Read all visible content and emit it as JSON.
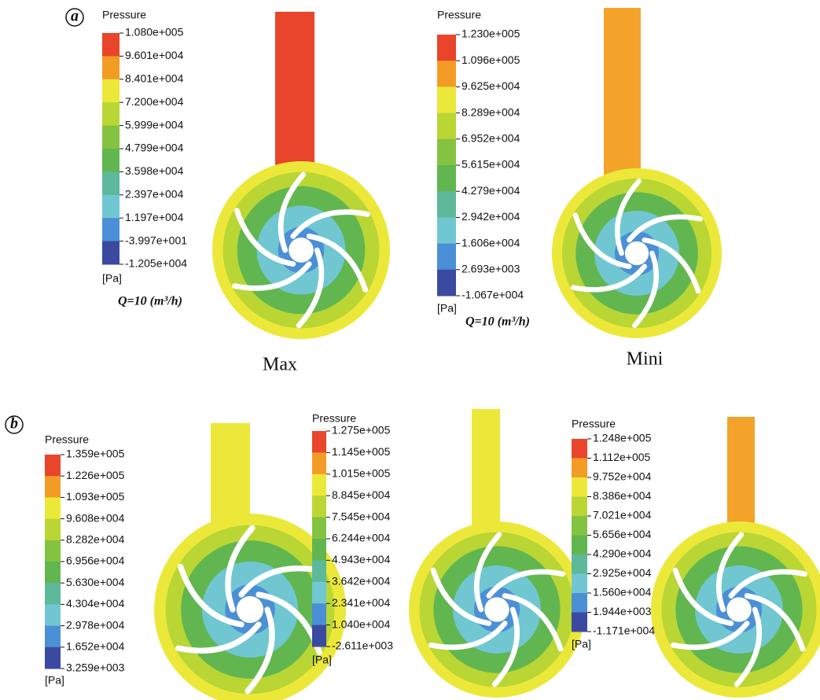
{
  "panels": [
    {
      "label": "a",
      "plots": [
        {
          "legend_title": "Pressure",
          "ticks": [
            "1.080e+005",
            "9.601e+004",
            "8.401e+004",
            "7.200e+004",
            "5.999e+004",
            "4.799e+004",
            "3.598e+004",
            "2.397e+004",
            "1.197e+004",
            "-3.997e+001",
            "-1.205e+004"
          ],
          "unit": "[Pa]",
          "flow": "Q=10 (m³/h)",
          "caption": "Max"
        },
        {
          "legend_title": "Pressure",
          "ticks": [
            "1.230e+005",
            "1.096e+005",
            "9.625e+004",
            "8.289e+004",
            "6.952e+004",
            "5.615e+004",
            "4.279e+004",
            "2.942e+004",
            "1.606e+004",
            "2.693e+003",
            "-1.067e+004"
          ],
          "unit": "[Pa]",
          "flow": "Q=10 (m³/h)",
          "caption": "Mini"
        }
      ]
    },
    {
      "label": "b",
      "plots": [
        {
          "legend_title": "Pressure",
          "ticks": [
            "1.359e+005",
            "1.226e+005",
            "1.093e+005",
            "9.608e+004",
            "8.282e+004",
            "6.956e+004",
            "5.630e+004",
            "4.304e+004",
            "2.978e+004",
            "1.652e+004",
            "3.259e+003"
          ],
          "unit": "[Pa]"
        },
        {
          "legend_title": "Pressure",
          "ticks": [
            "1.275e+005",
            "1.145e+005",
            "1.015e+005",
            "8.845e+004",
            "7.545e+004",
            "6.244e+004",
            "4.943e+004",
            "3.642e+004",
            "2.341e+004",
            "1.040e+004",
            "-2.611e+003"
          ],
          "unit": "[Pa]"
        },
        {
          "legend_title": "Pressure",
          "ticks": [
            "1.248e+005",
            "1.112e+005",
            "9.752e+004",
            "8.386e+004",
            "7.021e+004",
            "5.656e+004",
            "4.290e+004",
            "2.925e+004",
            "1.560e+004",
            "1.944e+003",
            "-1.171e+004"
          ],
          "unit": "[Pa]"
        }
      ]
    }
  ]
}
